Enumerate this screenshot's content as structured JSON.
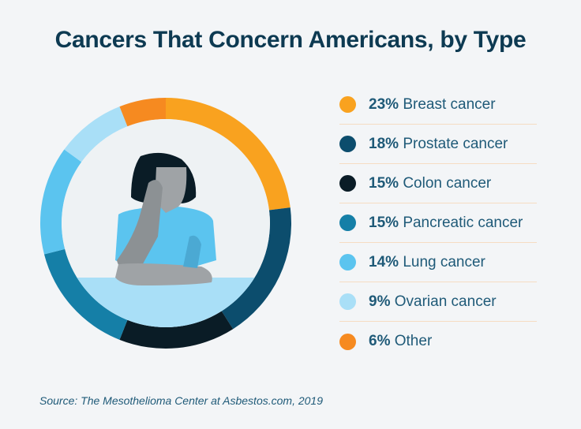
{
  "chart_data": {
    "type": "pie",
    "donut": true,
    "title": "Cancers That Concern Americans, by Type",
    "source": "Source: The Mesothelioma Center at Asbestos.com, 2019",
    "legend_position": "right",
    "slices": [
      {
        "label": "Breast cancer",
        "value": 23,
        "pct": "23%",
        "color": "#f9a21f"
      },
      {
        "label": "Prostate cancer",
        "value": 18,
        "pct": "18%",
        "color": "#0c4d6d"
      },
      {
        "label": "Colon cancer",
        "value": 15,
        "pct": "15%",
        "color": "#0a1c26"
      },
      {
        "label": "Pancreatic cancer",
        "value": 15,
        "pct": "15%",
        "color": "#157fa7"
      },
      {
        "label": "Lung cancer",
        "value": 14,
        "pct": "14%",
        "color": "#5bc4ef"
      },
      {
        "label": "Ovarian cancer",
        "value": 9,
        "pct": "9%",
        "color": "#a9dff7"
      },
      {
        "label": "Other",
        "value": 6,
        "pct": "6%",
        "color": "#f68a20"
      }
    ]
  }
}
